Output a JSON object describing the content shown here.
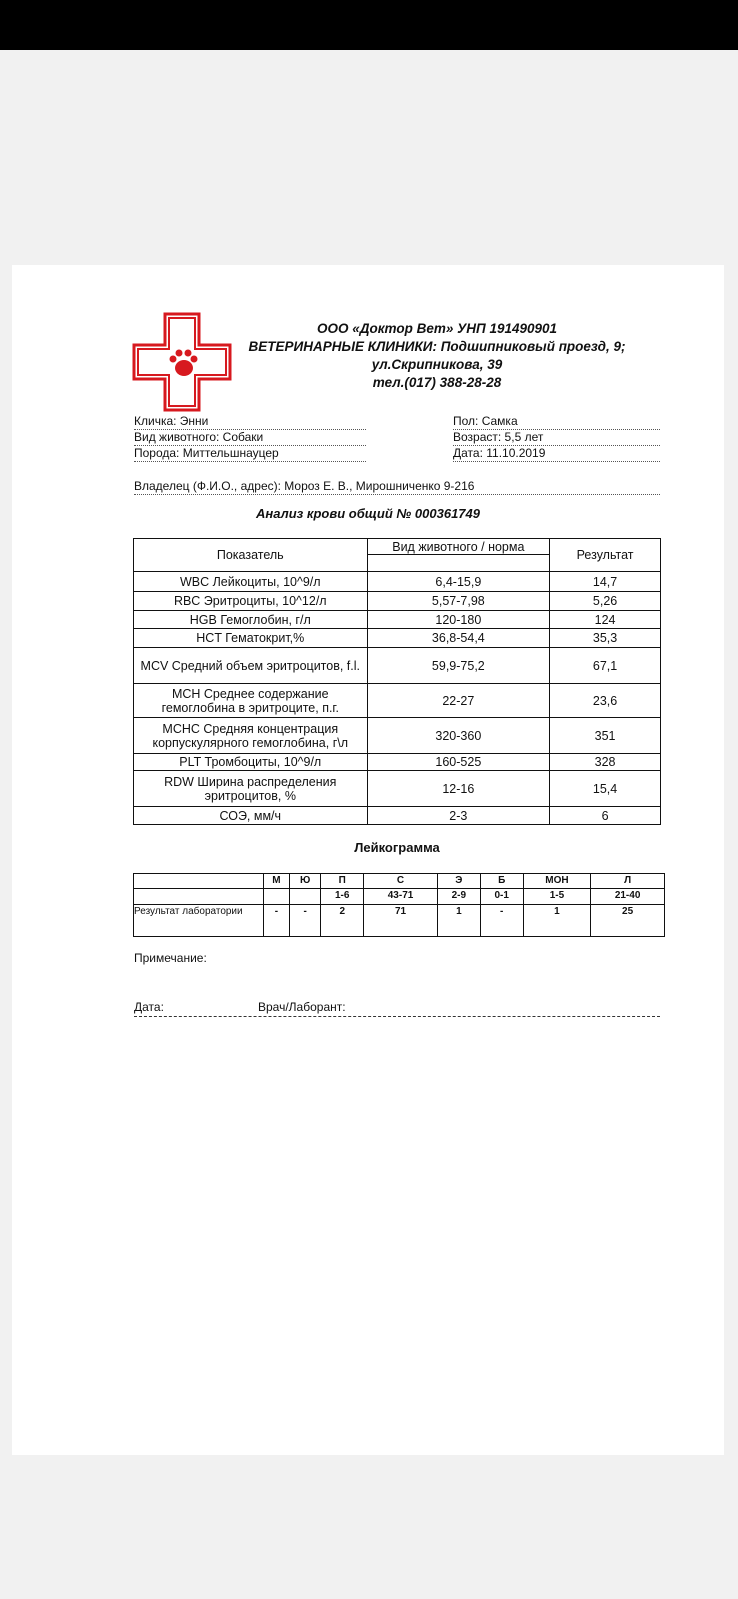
{
  "header": {
    "line1": "ООО «Доктор Вет» УНП 191490901",
    "line2": "ВЕТЕРИНАРНЫЕ КЛИНИКИ: Подшипниковый проезд, 9;",
    "line3": "ул.Скрипникова, 39",
    "line4": "тел.(017) 388-28-28",
    "logo_color": "#d7191f"
  },
  "patient": {
    "name": "Кличка: Энни",
    "species": "Вид животного: Собаки",
    "breed": "Порода: Миттельшнауцер",
    "sex": "Пол: Самка",
    "age": "Возраст: 5,5 лет",
    "date": "Дата: 11.10.2019",
    "owner": "Владелец (Ф.И.О., адрес): Мороз Е. В., Мирошниченко 9-216"
  },
  "title": "Анализ крови общий № 000361749",
  "blood": {
    "headers": {
      "param": "Показатель",
      "norm": "Вид животного /  норма",
      "result": "Результат"
    },
    "rows": [
      {
        "param": "WBC  Лейкоциты, 10^9/л",
        "norm": "6,4-15,9",
        "result": "14,7"
      },
      {
        "param": "RBC  Эритроциты, 10^12/л",
        "norm": "5,57-7,98",
        "result": "5,26"
      },
      {
        "param": "HGB  Гемоглобин, г/л",
        "norm": "120-180",
        "result": "124"
      },
      {
        "param": "HCT   Гематокрит,%",
        "norm": "36,8-54,4",
        "result": "35,3"
      },
      {
        "param": "MCV Средний объем эритроцитов, f.l.",
        "norm": "59,9-75,2",
        "result": "67,1"
      },
      {
        "param": "MCH  Среднее содержание гемоглобина в эритроците, п.г.",
        "norm": "22-27",
        "result": "23,6"
      },
      {
        "param": "MCHC Средняя концентрация корпускулярного гемоглобина, г\\л",
        "norm": "320-360",
        "result": "351"
      },
      {
        "param": "PLT Тромбоциты, 10^9/л",
        "norm": "160-525",
        "result": "328"
      },
      {
        "param": "RDW Ширина распределения эритроцитов, %",
        "norm": "12-16",
        "result": "15,4"
      },
      {
        "param": "СОЭ, мм/ч",
        "norm": "2-3",
        "result": "6"
      }
    ]
  },
  "leukogram": {
    "title": "Лейкограмма",
    "columns": [
      "М",
      "Ю",
      "П",
      "С",
      "Э",
      "Б",
      "МОН",
      "Л"
    ],
    "norms": [
      "",
      "",
      "1-6",
      "43-71",
      "2-9",
      "0-1",
      "1-5",
      "21-40"
    ],
    "result_label": "Результат лаборатории",
    "results": [
      "-",
      "-",
      "2",
      "71",
      "1",
      "-",
      "1",
      "25"
    ]
  },
  "footer": {
    "note": "Примечание:",
    "date": "Дата:",
    "doctor": "Врач/Лаборант:"
  }
}
